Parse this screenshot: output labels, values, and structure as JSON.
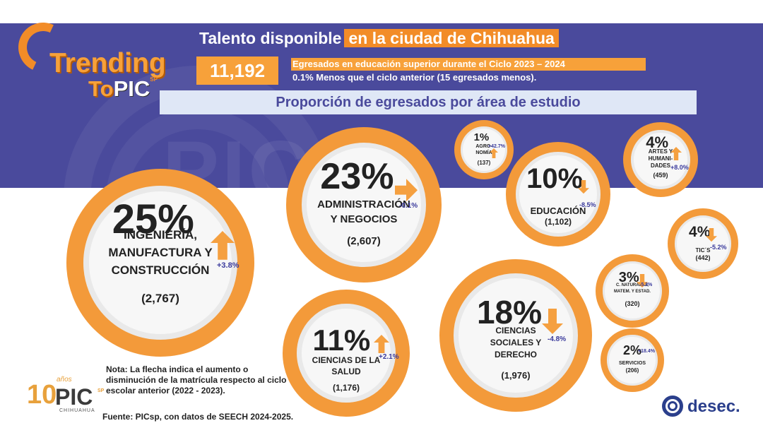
{
  "header": {
    "title_part1": "Talento disponible",
    "title_part2": "en la ciudad de Chihuahua",
    "total": "11,192",
    "desc_line1": "Egresados en educación superior durante el Ciclo 2023 – 2024",
    "desc_line2": "0.1% Menos que el ciclo anterior (15 egresados menos).",
    "subtitle": "Proporción de egresados por área de estudio"
  },
  "logo": {
    "line1": "Trending",
    "line2_a": "To",
    "line2_b": "PIC",
    "line2_sp": "SP"
  },
  "areas": [
    {
      "pct": "25%",
      "label_lines": [
        "INGENIERÍA,",
        "MANUFACTURA Y",
        "CONSTRUCCIÓN"
      ],
      "count": "(2,767)",
      "change": "+3.8%",
      "direction": "up"
    },
    {
      "pct": "23%",
      "label_lines": [
        "ADMINISTRACIÓN",
        "Y NEGOCIOS"
      ],
      "count": "(2,607)",
      "change": "-0.1%",
      "direction": "right"
    },
    {
      "pct": "1%",
      "label_lines": [
        "AGRO-",
        "NOMÍA"
      ],
      "count": "(137)",
      "change": "+42.7%",
      "direction": "up"
    },
    {
      "pct": "10%",
      "label_lines": [
        "EDUCACIÓN"
      ],
      "count": "(1,102)",
      "change": "-8.5%",
      "direction": "down"
    },
    {
      "pct": "4%",
      "label_lines": [
        "ARTES Y",
        "HUMANI-",
        "DADES"
      ],
      "count": "(459)",
      "change": "+8.0%",
      "direction": "up"
    },
    {
      "pct": "4%",
      "label_lines": [
        "TIC´S"
      ],
      "count": "(442)",
      "change": "-5.2%",
      "direction": "down"
    },
    {
      "pct": "3%",
      "label_lines": [
        "C. NATURALES,",
        "MATEM. Y ESTAD."
      ],
      "count": "(320)",
      "change": "-5.3%",
      "direction": "down"
    },
    {
      "pct": "18%",
      "label_lines": [
        "CIENCIAS",
        "SOCIALES Y",
        "DERECHO"
      ],
      "count": "(1,976)",
      "change": "-4.8%",
      "direction": "down"
    },
    {
      "pct": "11%",
      "label_lines": [
        "CIENCIAS DE LA",
        "SALUD"
      ],
      "count": "(1,176)",
      "change": "+2.1%",
      "direction": "up"
    },
    {
      "pct": "2%",
      "label_lines": [
        "SERVICIOS"
      ],
      "count": "(206)",
      "change": "+18.4%",
      "direction": "up"
    }
  ],
  "footer": {
    "note": "Nota: La flecha indica el aumento o disminución de la matrícula respecto al ciclo escolar anterior (2022 - 2023).",
    "source": "Fuente: PICsp, con datos de SEECH 2024-2025.",
    "brand_left_ten": "10",
    "brand_left_pic": "PIC",
    "brand_left_years": "años",
    "brand_left_sp": "SP",
    "brand_left_city": "CHIHUAHUA",
    "brand_right": "desec."
  },
  "colors": {
    "banner": "#4a4a9c",
    "orange": "#f28c28",
    "arrow": "#f5a040",
    "ring": "#f39a3a",
    "bubble_fill": "#f7f7f7",
    "subtitle_bg": "#dfe7f6",
    "desec_blue": "#2b3f8c"
  }
}
